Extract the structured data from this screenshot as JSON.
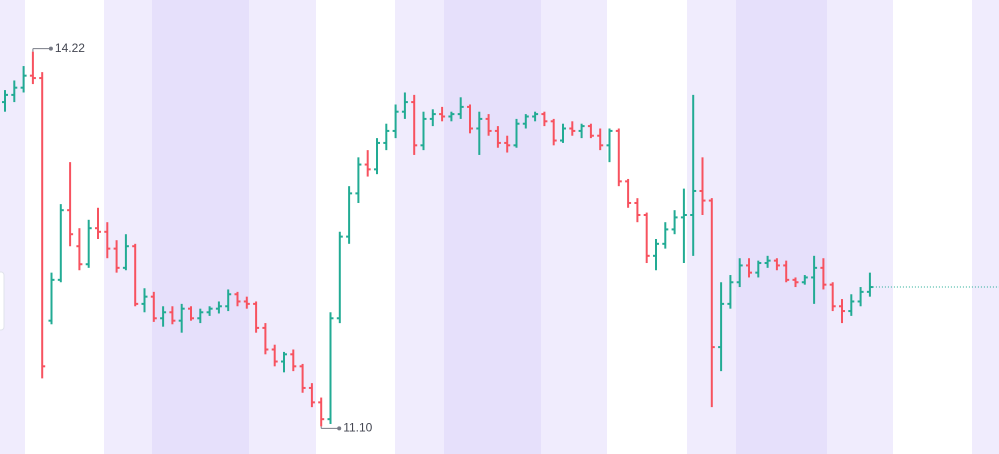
{
  "chart_data": {
    "type": "ohlc",
    "up_color": "#22ab94",
    "down_color": "#f7525f",
    "ylim": [
      10.87,
      14.65
    ],
    "open": [
      13.8,
      13.86,
      13.92,
      14.02,
      14.0,
      11.98,
      12.32,
      12.9,
      12.6,
      12.45,
      12.75,
      12.72,
      12.58,
      12.42,
      12.6,
      12.12,
      12.18,
      12.0,
      12.05,
      11.98,
      12.08,
      12.0,
      12.05,
      12.08,
      12.1,
      12.2,
      12.14,
      12.12,
      11.92,
      11.74,
      11.64,
      11.7,
      11.6,
      11.42,
      11.3,
      11.16,
      12.0,
      12.68,
      13.04,
      13.28,
      13.24,
      13.46,
      13.56,
      13.72,
      13.8,
      13.44,
      13.66,
      13.7,
      13.68,
      13.7,
      13.76,
      13.58,
      13.66,
      13.56,
      13.46,
      13.44,
      13.62,
      13.68,
      13.7,
      13.64,
      13.48,
      13.58,
      13.56,
      13.6,
      13.52,
      13.44,
      13.56,
      13.14,
      12.96,
      12.86,
      12.52,
      12.62,
      12.74,
      12.84,
      12.86,
      13.06,
      12.98,
      11.76,
      12.12,
      12.3,
      12.44,
      12.38,
      12.46,
      12.48,
      12.44,
      12.32,
      12.3,
      12.34,
      12.42,
      12.28,
      12.1,
      12.06,
      12.14,
      12.22
    ],
    "high": [
      13.9,
      13.98,
      14.1,
      14.22,
      14.05,
      12.38,
      12.95,
      13.3,
      12.75,
      12.82,
      12.92,
      12.8,
      12.65,
      12.7,
      12.62,
      12.25,
      12.22,
      12.1,
      12.1,
      12.12,
      12.1,
      12.08,
      12.1,
      12.14,
      12.24,
      12.22,
      12.18,
      12.14,
      11.96,
      11.78,
      11.72,
      11.74,
      11.62,
      11.46,
      11.34,
      12.05,
      12.72,
      13.1,
      13.34,
      13.4,
      13.5,
      13.62,
      13.78,
      13.88,
      13.86,
      13.72,
      13.74,
      13.76,
      13.72,
      13.84,
      13.78,
      13.72,
      13.7,
      13.6,
      13.52,
      13.66,
      13.7,
      13.72,
      13.72,
      13.66,
      13.62,
      13.64,
      13.62,
      13.62,
      13.58,
      13.58,
      13.58,
      13.16,
      13.0,
      12.88,
      12.66,
      12.8,
      12.9,
      13.08,
      13.86,
      13.34,
      13.0,
      12.3,
      12.36,
      12.5,
      12.5,
      12.48,
      12.52,
      12.5,
      12.48,
      12.34,
      12.36,
      12.52,
      12.5,
      12.3,
      12.16,
      12.2,
      12.26,
      12.38
    ],
    "low": [
      13.72,
      13.8,
      13.88,
      13.95,
      11.5,
      11.95,
      12.3,
      12.6,
      12.4,
      12.42,
      12.66,
      12.5,
      12.38,
      12.4,
      12.1,
      12.05,
      11.97,
      11.93,
      11.95,
      11.88,
      11.98,
      11.96,
      12.02,
      12.04,
      12.06,
      12.1,
      12.08,
      11.88,
      11.7,
      11.6,
      11.55,
      11.56,
      11.38,
      11.26,
      11.1,
      11.12,
      11.96,
      12.62,
      12.96,
      13.18,
      13.2,
      13.4,
      13.5,
      13.66,
      13.36,
      13.4,
      13.6,
      13.64,
      13.64,
      13.66,
      13.54,
      13.36,
      13.52,
      13.42,
      13.38,
      13.42,
      13.58,
      13.64,
      13.6,
      13.44,
      13.46,
      13.52,
      13.5,
      13.5,
      13.4,
      13.3,
      13.1,
      12.92,
      12.8,
      12.46,
      12.4,
      12.58,
      12.7,
      12.46,
      12.52,
      12.86,
      11.26,
      11.56,
      12.08,
      12.26,
      12.34,
      12.34,
      12.42,
      12.4,
      12.3,
      12.26,
      12.28,
      12.12,
      12.24,
      12.06,
      11.96,
      12.02,
      12.1,
      12.18
    ],
    "close": [
      13.86,
      13.92,
      14.02,
      14.0,
      11.6,
      12.32,
      12.9,
      12.7,
      12.45,
      12.75,
      12.72,
      12.58,
      12.42,
      12.6,
      12.12,
      12.18,
      12.0,
      12.05,
      11.98,
      12.08,
      12.0,
      12.05,
      12.08,
      12.1,
      12.2,
      12.14,
      12.12,
      11.92,
      11.74,
      11.64,
      11.7,
      11.6,
      11.42,
      11.3,
      11.16,
      12.0,
      12.68,
      13.04,
      13.28,
      13.24,
      13.46,
      13.56,
      13.72,
      13.8,
      13.44,
      13.66,
      13.7,
      13.68,
      13.7,
      13.76,
      13.58,
      13.66,
      13.56,
      13.46,
      13.44,
      13.62,
      13.68,
      13.7,
      13.64,
      13.48,
      13.58,
      13.56,
      13.6,
      13.52,
      13.44,
      13.56,
      13.14,
      12.96,
      12.86,
      12.52,
      12.62,
      12.74,
      12.84,
      12.86,
      13.06,
      12.98,
      11.76,
      12.12,
      12.3,
      12.44,
      12.38,
      12.46,
      12.48,
      12.44,
      12.32,
      12.3,
      12.34,
      12.42,
      12.28,
      12.1,
      12.06,
      12.14,
      12.22,
      12.26
    ],
    "annotations": [
      {
        "value": 14.22,
        "label": "14.22"
      },
      {
        "value": 11.1,
        "label": "11.10"
      }
    ]
  }
}
